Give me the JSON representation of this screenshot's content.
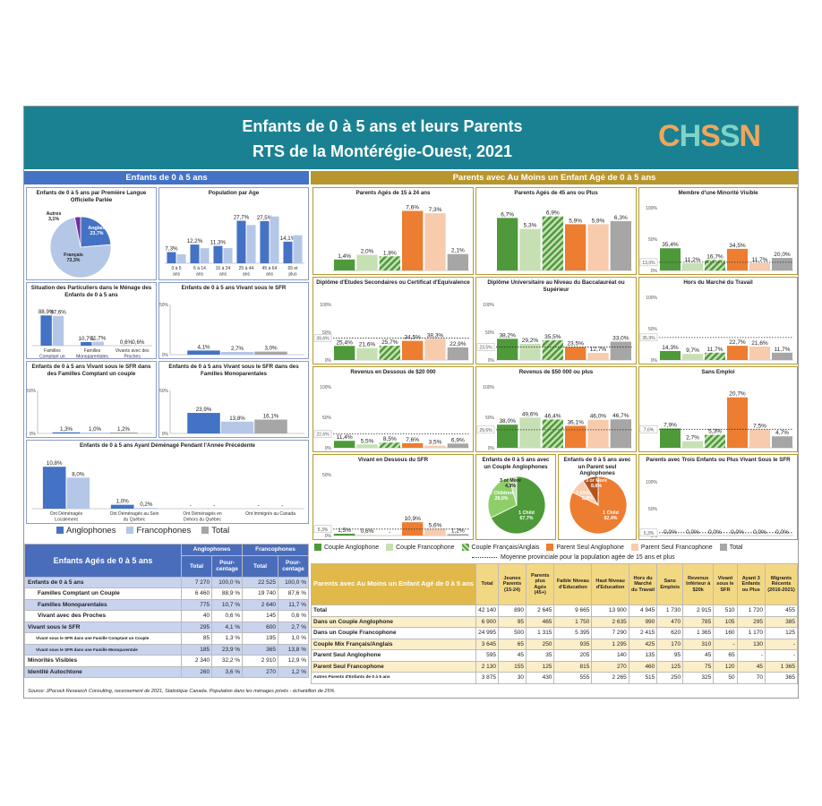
{
  "header": {
    "title1": "Enfants de 0 à 5 ans et leurs Parents",
    "title2": "RTS de la Montérégie-Ouest, 2021",
    "logo": "CHSSN"
  },
  "left_bar": "Enfants de 0 à 5 ans",
  "right_bar": "Parents avec Au Moins un Enfant Agé de 0 à 5 ans",
  "colors": {
    "anglo": "#4472c4",
    "franco": "#b4c7e7",
    "total": "#a6a6a6",
    "cpl_ang": "#4e9a3a",
    "cpl_fr": "#c6e0b4",
    "cpl_mix": "#4e9a3a",
    "sp_ang": "#ed7d31",
    "sp_fr": "#f8cbad",
    "prov": "#333333"
  },
  "chart_data": [
    {
      "id": "pie",
      "type": "pie",
      "title": "Enfants de 0 à 5 ans par Première Langue Officielle Parlée",
      "slices": [
        {
          "name": "Anglais",
          "value": 23.7,
          "label": "23,7%"
        },
        {
          "name": "Français",
          "value": 73.3,
          "label": "73,3%"
        },
        {
          "name": "Autres",
          "value": 3.1,
          "label": "3,1%"
        }
      ]
    },
    {
      "id": "age",
      "type": "bar",
      "title": "Population par Age",
      "categories": [
        "0 à 5 ans",
        "6 à 14 ans",
        "15 à 24 ans",
        "25 à 44 ans",
        "45 à 64 ans",
        "65 et plus"
      ],
      "series": [
        {
          "name": "Anglophones",
          "values": [
            7.3,
            12.2,
            11.3,
            27.7,
            27.5,
            14.1
          ],
          "labels": [
            "7,3%",
            "12,2%",
            "11,3%",
            "27,7%",
            "27,5%",
            "14,1%"
          ]
        },
        {
          "name": "Francophones",
          "values": [
            5.8,
            9.8,
            9.9,
            24.9,
            30.5,
            18.3
          ],
          "labels": [
            "",
            "",
            "",
            "",
            "",
            ""
          ]
        }
      ],
      "ylim": [
        0,
        35
      ]
    },
    {
      "id": "situation",
      "type": "bar",
      "title": "Situation des Particuliers dans le Ménage des Enfants de 0 à 5 ans",
      "categories": [
        "Familles Comptant un Couple",
        "Familles Monoparentales",
        "Vivants avec des Proches"
      ],
      "series": [
        {
          "name": "Anglophones",
          "values": [
            88.9,
            10.7,
            0.6
          ],
          "labels": [
            "88,9%",
            "10,7%",
            "0,6%"
          ]
        },
        {
          "name": "Francophones",
          "values": [
            87.6,
            11.7,
            0.6
          ],
          "labels": [
            "87,6%",
            "11,7%",
            "0,6%"
          ]
        }
      ],
      "ylim": [
        0,
        100
      ]
    },
    {
      "id": "sfr",
      "type": "bar",
      "title": "Enfants de 0 à 5 ans Vivant sous le SFR",
      "categories": [
        ""
      ],
      "series": [
        {
          "name": "Anglophones",
          "values": [
            4.1
          ],
          "labels": [
            "4,1%"
          ]
        },
        {
          "name": "Francophones",
          "values": [
            2.7
          ],
          "labels": [
            "2,7%"
          ]
        },
        {
          "name": "Total",
          "values": [
            3.0
          ],
          "labels": [
            "3,0%"
          ]
        }
      ],
      "ylim": [
        0,
        50
      ],
      "yticks": [
        "50%",
        "0%"
      ]
    },
    {
      "id": "sfr_couple",
      "type": "bar",
      "title": "Enfants de 0 à 5 ans Vivant sous le SFR dans des Familles Comptant un couple",
      "categories": [
        ""
      ],
      "series": [
        {
          "name": "Anglophones",
          "values": [
            1.3
          ],
          "labels": [
            "1,3%"
          ]
        },
        {
          "name": "Francophones",
          "values": [
            1.0
          ],
          "labels": [
            "1,0%"
          ]
        },
        {
          "name": "Total",
          "values": [
            1.2
          ],
          "labels": [
            "1,2%"
          ]
        }
      ],
      "ylim": [
        0,
        50
      ],
      "yticks": [
        "50%",
        "0%"
      ]
    },
    {
      "id": "sfr_mono",
      "type": "bar",
      "title": "Enfants de 0 à 5 ans Vivant sous le SFR dans des Familles Monoparentales",
      "categories": [
        ""
      ],
      "series": [
        {
          "name": "Anglophones",
          "values": [
            23.9
          ],
          "labels": [
            "23,9%"
          ]
        },
        {
          "name": "Francophones",
          "values": [
            13.8
          ],
          "labels": [
            "13,8%"
          ]
        },
        {
          "name": "Total",
          "values": [
            16.1
          ],
          "labels": [
            "16,1%"
          ]
        }
      ],
      "ylim": [
        0,
        50
      ],
      "yticks": [
        "50%",
        "0%"
      ]
    },
    {
      "id": "move",
      "type": "bar",
      "title": "Enfants de 0 à 5 ans Ayant Déménagé Pendant l'Année Précédente",
      "categories": [
        "Ont Déménagés Localement",
        "Ont Déménagés au Sein du Québec",
        "Ont Déménagés en Dehors du Québec",
        "Ont Immigrés au Canada"
      ],
      "series": [
        {
          "name": "Anglophones",
          "values": [
            10.8,
            1.0,
            0,
            0
          ],
          "labels": [
            "10,8%",
            "1,0%",
            "-",
            "-"
          ]
        },
        {
          "name": "Francophones",
          "values": [
            8.0,
            0.2,
            0,
            0
          ],
          "labels": [
            "8,0%",
            "0,2%",
            "-",
            "-"
          ]
        }
      ],
      "ylim": [
        0,
        12
      ]
    },
    {
      "id": "p1",
      "type": "bar",
      "title": "Parents Agés de 15 à 24 ans",
      "values": [
        1.4,
        2.0,
        1.8,
        7.6,
        7.3,
        2.1
      ],
      "labels": [
        "1,4%",
        "2,0%",
        "1,8%",
        "7,6%",
        "7,3%",
        "2,1%"
      ],
      "ylim": [
        0,
        8
      ]
    },
    {
      "id": "p2",
      "type": "bar",
      "title": "Parents Agés de 45 ans ou Plus",
      "values": [
        6.7,
        5.3,
        6.9,
        5.9,
        5.9,
        6.3
      ],
      "labels": [
        "6,7%",
        "5,3%",
        "6,9%",
        "5,9%",
        "5,9%",
        "6,3%"
      ],
      "ylim": [
        0,
        8
      ]
    },
    {
      "id": "p3",
      "type": "bar",
      "title": "Membre d'une Minorité Visible",
      "values": [
        35.4,
        11.2,
        16.7,
        34.5,
        11.7,
        20.0
      ],
      "labels": [
        "35,4%",
        "11,2%",
        "16,7%",
        "34,5%",
        "11,7%",
        "20,0%"
      ],
      "ylim": [
        0,
        100
      ],
      "yticks": [
        "100%",
        "50%",
        "0%"
      ],
      "prov": 13.0,
      "prov_label": "13,0%"
    },
    {
      "id": "p4",
      "type": "bar",
      "title": "Diplôme d'Etudes Secondaires ou Certificat d'Equivalence",
      "values": [
        25.4,
        21.6,
        25.7,
        34.5,
        38.3,
        22.9
      ],
      "labels": [
        "25,4%",
        "21,6%",
        "25,7%",
        "34,5%",
        "38,3%",
        "22,9%"
      ],
      "ylim": [
        0,
        100
      ],
      "yticks": [
        "100%",
        "50%",
        "0%"
      ],
      "prov": 39.6,
      "prov_label": "39,6%"
    },
    {
      "id": "p5",
      "type": "bar",
      "title": "Diplôme Universitaire au Niveau du Baccalauréat ou Supérieur",
      "values": [
        38.2,
        29.2,
        35.5,
        23.5,
        12.7,
        33.0
      ],
      "labels": [
        "38,2%",
        "29,2%",
        "35,5%",
        "23,5%",
        "12,7%",
        "33,0%"
      ],
      "ylim": [
        0,
        100
      ],
      "yticks": [
        "100%",
        "50%",
        "0%"
      ],
      "prov": 23.5,
      "prov_label": "23,5%"
    },
    {
      "id": "p6",
      "type": "bar",
      "title": "Hors du Marché du Travail",
      "values": [
        14.3,
        9.7,
        11.7,
        22.7,
        21.6,
        11.7
      ],
      "labels": [
        "14,3%",
        "9,7%",
        "11,7%",
        "22,7%",
        "21,6%",
        "11,7%"
      ],
      "ylim": [
        0,
        100
      ],
      "yticks": [
        "100%",
        "50%",
        "0%"
      ],
      "prov": 35.9,
      "prov_label": "35,9%"
    },
    {
      "id": "p7",
      "type": "bar",
      "title": "Revenus en Dessous de $20 000",
      "values": [
        11.4,
        5.5,
        8.5,
        7.6,
        3.5,
        6.9
      ],
      "labels": [
        "11,4%",
        "5,5%",
        "8,5%",
        "7,6%",
        "3,5%",
        "6,9%"
      ],
      "ylim": [
        0,
        100
      ],
      "yticks": [
        "100%",
        "50%",
        "0%"
      ],
      "prov": 22.6,
      "prov_label": "22,6%"
    },
    {
      "id": "p8",
      "type": "bar",
      "title": "Revenus de $50 000 ou plus",
      "values": [
        38.0,
        49.6,
        46.4,
        36.1,
        46.0,
        46.7
      ],
      "labels": [
        "38,0%",
        "49,6%",
        "46,4%",
        "36,1%",
        "46,0%",
        "46,7%"
      ],
      "ylim": [
        0,
        100
      ],
      "yticks": [
        "100%",
        "50%",
        "0%"
      ],
      "prov": 29.6,
      "prov_label": "29,6%"
    },
    {
      "id": "p9",
      "type": "bar",
      "title": "Sans Emploi",
      "values": [
        7.9,
        2.7,
        5.3,
        20.7,
        7.5,
        4.7
      ],
      "labels": [
        "7,9%",
        "2,7%",
        "5,3%",
        "20,7%",
        "7,5%",
        "4,7%"
      ],
      "ylim": [
        0,
        25
      ],
      "prov": 7.6,
      "prov_label": "7,6%"
    },
    {
      "id": "p10",
      "type": "bar",
      "title": "Vivant en Dessous du SFR",
      "values": [
        1.5,
        0.6,
        0,
        10.9,
        5.6,
        1.2
      ],
      "labels": [
        "1,5%",
        "0,6%",
        "-",
        "10,9%",
        "5,6%",
        "1,2%"
      ],
      "ylim": [
        0,
        50
      ],
      "yticks": [
        "50%",
        "0%"
      ],
      "prov": 5.3,
      "prov_label": "5,3%"
    },
    {
      "id": "pie_ang",
      "type": "pie",
      "title": "Enfants de 0 à 5 ans avec un Couple Anglophones",
      "slices": [
        {
          "name": "1 Child",
          "value": 67.7,
          "label": "67,7%"
        },
        {
          "name": "2 Children",
          "value": 28.0,
          "label": "28,0%"
        },
        {
          "name": "3 or More",
          "value": 4.3,
          "label": "4,3%"
        }
      ]
    },
    {
      "id": "pie_sp",
      "type": "pie",
      "title": "Enfants de 0 à 5 ans avec un Parent seul Anglophones",
      "slices": [
        {
          "name": "1 Child",
          "value": 82.4,
          "label": "82,4%"
        },
        {
          "name": "2 Children",
          "value": 8.8,
          "label": "8,8%"
        },
        {
          "name": "3 or More",
          "value": 8.8,
          "label": "8,8%"
        }
      ]
    },
    {
      "id": "p11",
      "type": "bar",
      "title": "Parents avec Trois Enfants ou Plus Vivant Sous le SFR",
      "values": [
        0,
        0,
        0,
        0,
        0,
        0
      ],
      "labels": [
        "0,0%",
        "0,0%",
        "0,0%",
        "0,0%",
        "0,0%",
        "0,0%"
      ],
      "ylim": [
        0,
        100
      ],
      "yticks": [
        "100%",
        "50%",
        "0%"
      ],
      "prov": 5.3,
      "prov_label": "5,3%"
    }
  ],
  "left_legend": [
    "Anglophones",
    "Francophones",
    "Total"
  ],
  "right_legend": [
    "Couple Anglophone",
    "Couple Francophone",
    "Couple Français/Anglais",
    "Parent Seul Anglophone",
    "Parent Seul Francophone",
    "Total"
  ],
  "prov_legend": "Moyenne provinciale pour la population agée de 15 ans et plus",
  "left_table": {
    "title": "Enfants Agés de 0 à 5 ans",
    "groups": [
      "Anglophones",
      "Francophones"
    ],
    "sub": [
      "Total",
      "Pour-centage",
      "Total",
      "Pour-centage"
    ],
    "rows": [
      {
        "label": "Enfants de 0 à 5 ans",
        "v": [
          "7 270",
          "100,0 %",
          "22 525",
          "100,0 %"
        ],
        "b": 1
      },
      {
        "label": "Familles Comptant un Couple",
        "v": [
          "6 460",
          "88,9 %",
          "19 740",
          "87,6 %"
        ],
        "b": 0
      },
      {
        "label": "Familles Monoparentales",
        "v": [
          "775",
          "10,7 %",
          "2 640",
          "11,7 %"
        ],
        "b": 1
      },
      {
        "label": "Vivant avec des Proches",
        "v": [
          "40",
          "0,6 %",
          "145",
          "0,6 %"
        ],
        "b": 0
      },
      {
        "label": "Vivant sous le SFR",
        "v": [
          "295",
          "4,1 %",
          "600",
          "2,7 %"
        ],
        "b": 1
      },
      {
        "label": "Vivant sous le SFR dans une Famille Comptant un Couple",
        "v": [
          "85",
          "1,3 %",
          "195",
          "1,0 %"
        ],
        "b": 0
      },
      {
        "label": "Vivant sous le SFR dans une Famille Monoparentale",
        "v": [
          "185",
          "23,9 %",
          "365",
          "13,8 %"
        ],
        "b": 1
      },
      {
        "label": "Minorités Visibles",
        "v": [
          "2 340",
          "32,2 %",
          "2 910",
          "12,9 %"
        ],
        "b": 0
      },
      {
        "label": "Identité Autochtone",
        "v": [
          "260",
          "3,6 %",
          "270",
          "1,2 %"
        ],
        "b": 1
      }
    ]
  },
  "right_table": {
    "title": "Parents avec Au Moins un Enfant Agé de 0 à 5 ans",
    "cols": [
      "Total",
      "Jeunes Parents (15-24)",
      "Parents plus Agés (45+)",
      "Faible Niveau d'Education",
      "Haut Niveau d'Education",
      "Hors du Marché du Travail",
      "Sans Emplois",
      "Revenus Inférieur à $20k",
      "Vivant sous le SFR",
      "Ayant 3 Enfants ou Plus",
      "Migrants Récents (2016-2021)"
    ],
    "rows": [
      {
        "label": "Total",
        "v": [
          "42 140",
          "890",
          "2 645",
          "9 665",
          "13 900",
          "4 945",
          "1 730",
          "2 915",
          "510",
          "1 720",
          "455"
        ],
        "b": 0
      },
      {
        "label": "Dans un Couple Anglophone",
        "v": [
          "6 900",
          "95",
          "465",
          "1 750",
          "2 635",
          "990",
          "470",
          "785",
          "105",
          "295",
          "385"
        ],
        "b": 1
      },
      {
        "label": "Dans un Couple Francophone",
        "v": [
          "24 995",
          "500",
          "1 315",
          "5 395",
          "7 290",
          "2 415",
          "620",
          "1 365",
          "160",
          "1 170",
          "125"
        ],
        "b": 0
      },
      {
        "label": "Couple Mix Français/Anglais",
        "v": [
          "3 645",
          "65",
          "250",
          "935",
          "1 295",
          "425",
          "170",
          "310",
          "-",
          "130",
          "-"
        ],
        "b": 1
      },
      {
        "label": "Parent Seul Anglophone",
        "v": [
          "595",
          "45",
          "35",
          "205",
          "140",
          "135",
          "95",
          "45",
          "65",
          "-",
          "-"
        ],
        "b": 0
      },
      {
        "label": "Parent Seul Francophone",
        "v": [
          "2 130",
          "155",
          "125",
          "815",
          "270",
          "460",
          "125",
          "75",
          "120",
          "45",
          "1 365"
        ],
        "b": 1
      },
      {
        "label": "Autres Parents d'Enfants de 0 à 5 ans",
        "v": [
          "3 875",
          "30",
          "430",
          "555",
          "2 265",
          "515",
          "250",
          "325",
          "50",
          "70",
          "365"
        ],
        "b": 0
      }
    ]
  },
  "source": "Source: JPocock Research Consulting, recensement de 2021, Statistique Canada. Population dans les ménages privés - échantillon de 25%."
}
